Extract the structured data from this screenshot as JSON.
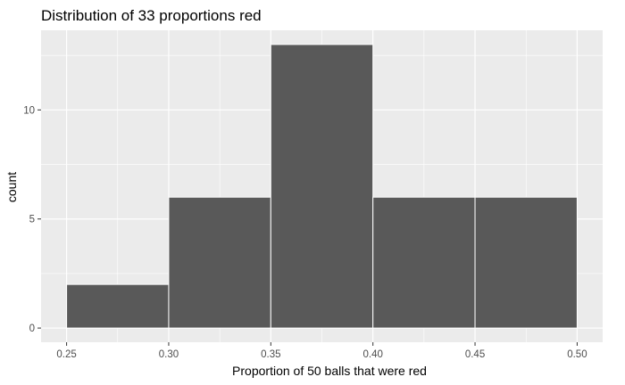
{
  "chart_data": {
    "type": "histogram",
    "title": "Distribution of 33 proportions red",
    "xlabel": "Proportion of 50 balls that were red",
    "ylabel": "count",
    "bins": [
      {
        "x0": 0.25,
        "x1": 0.3,
        "count": 2
      },
      {
        "x0": 0.3,
        "x1": 0.35,
        "count": 6
      },
      {
        "x0": 0.35,
        "x1": 0.4,
        "count": 13
      },
      {
        "x0": 0.4,
        "x1": 0.45,
        "count": 6
      },
      {
        "x0": 0.45,
        "x1": 0.5,
        "count": 6
      }
    ],
    "x_ticks": [
      0.25,
      0.3,
      0.35,
      0.4,
      0.45,
      0.5
    ],
    "x_tick_labels": [
      "0.25",
      "0.30",
      "0.35",
      "0.40",
      "0.45",
      "0.50"
    ],
    "y_ticks": [
      0,
      5,
      10
    ],
    "y_tick_labels": [
      "0",
      "5",
      "10"
    ],
    "xlim": [
      0.2375,
      0.5125
    ],
    "ylim": [
      -0.65,
      13.65
    ],
    "grid": true,
    "colors": {
      "panel_background": "#EBEBEB",
      "grid_major": "#FFFFFF",
      "bar_fill": "#595959",
      "bar_outline": "#FFFFFF",
      "tick_color": "#333333"
    }
  }
}
